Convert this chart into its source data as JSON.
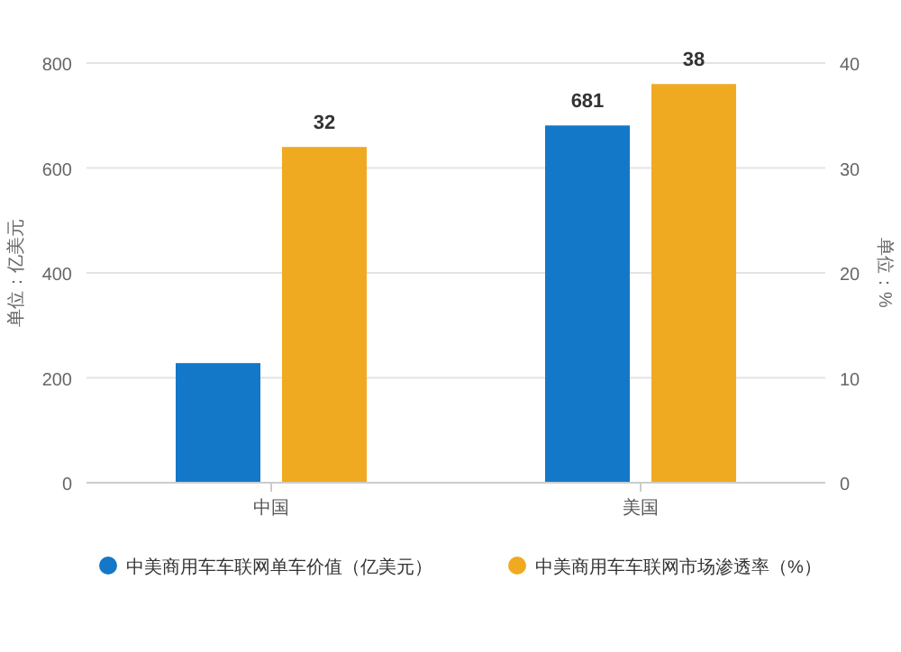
{
  "chart_data": {
    "type": "bar",
    "categories": [
      "中国",
      "美国"
    ],
    "ylabel": "单位：亿美元",
    "y2label": "单位：%",
    "ylim": [
      0,
      800
    ],
    "yticks": [
      0,
      200,
      400,
      600,
      800
    ],
    "y2lim": [
      0,
      40
    ],
    "y2ticks": [
      0,
      10,
      20,
      30,
      40
    ],
    "grid": "y",
    "legend": "bottom",
    "series": [
      {
        "name": "中美商用车车联网单车价值（亿美元）",
        "color": "#1478c8",
        "values": [
          228,
          681
        ],
        "value_labels": [
          null,
          "681"
        ]
      },
      {
        "name": "中美商用车车联网市场渗透率（%）",
        "color": "#f0aa22",
        "values": [
          32,
          38
        ],
        "axis": "y2",
        "value_labels": [
          "32",
          "38"
        ]
      }
    ]
  }
}
